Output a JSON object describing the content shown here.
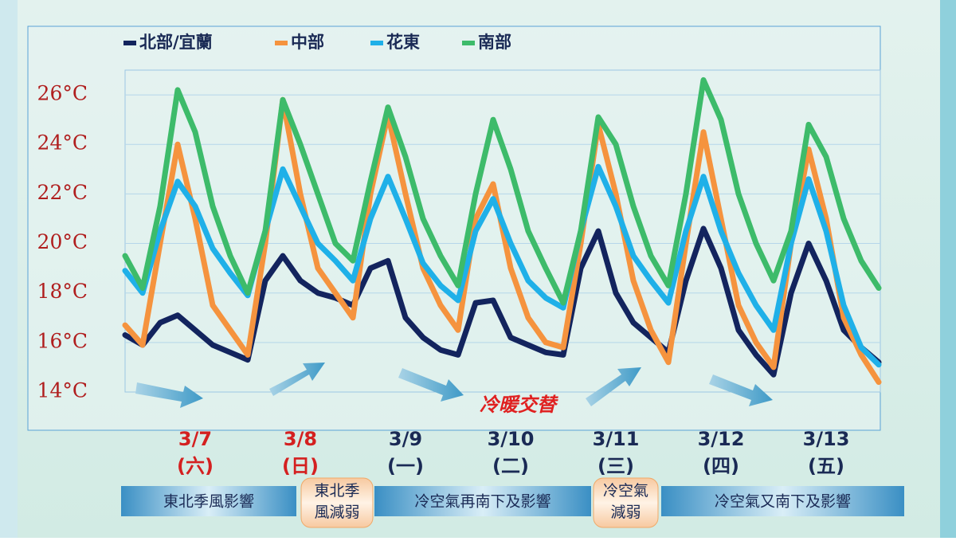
{
  "chart_data": {
    "type": "line",
    "categories": [
      null,
      null,
      null,
      null,
      "3/7",
      null,
      null,
      null,
      null,
      null,
      "3/8",
      null,
      null,
      null,
      null,
      null,
      "3/9",
      null,
      null,
      null,
      null,
      null,
      "3/10",
      null,
      null,
      null,
      null,
      null,
      "3/11",
      null,
      null,
      null,
      null,
      null,
      "3/12",
      null,
      null,
      null,
      null,
      null,
      "3/13",
      null,
      null,
      null
    ],
    "weekdays": [
      null,
      null,
      null,
      null,
      "(六)",
      null,
      null,
      null,
      null,
      null,
      "(日)",
      null,
      null,
      null,
      null,
      null,
      "(一)",
      null,
      null,
      null,
      null,
      null,
      "(二)",
      null,
      null,
      null,
      null,
      null,
      "(三)",
      null,
      null,
      null,
      null,
      null,
      "(四)",
      null,
      null,
      null,
      null,
      null,
      "(五)",
      null,
      null,
      null
    ],
    "category_colors": [
      null,
      null,
      null,
      null,
      "#d42020",
      null,
      null,
      null,
      null,
      null,
      "#d42020",
      null,
      null,
      null,
      null,
      null,
      "#1a2a55",
      null,
      null,
      null,
      null,
      null,
      "#1a2a55",
      null,
      null,
      null,
      null,
      null,
      "#1a2a55",
      null,
      null,
      null,
      null,
      null,
      "#1a2a55",
      null,
      null,
      null,
      null,
      null,
      "#1a2a55",
      null,
      null,
      null
    ],
    "series": [
      {
        "name": "北部/宜蘭",
        "color": "#13245e",
        "values": [
          16.3,
          15.9,
          16.8,
          17.1,
          16.5,
          15.9,
          15.6,
          15.3,
          18.5,
          19.5,
          18.5,
          18.0,
          17.8,
          17.5,
          19.0,
          19.3,
          17.0,
          16.2,
          15.7,
          15.5,
          17.6,
          17.7,
          16.2,
          15.9,
          15.6,
          15.5,
          19.0,
          20.5,
          18.0,
          16.8,
          16.2,
          15.6,
          18.5,
          20.6,
          19.0,
          16.5,
          15.5,
          14.7,
          18.0,
          20.0,
          18.5,
          16.5,
          15.8,
          15.2
        ]
      },
      {
        "name": "中部",
        "color": "#f5933e",
        "values": [
          16.7,
          15.9,
          20.0,
          24.0,
          21.0,
          17.5,
          16.5,
          15.5,
          20.0,
          25.8,
          22.0,
          19.0,
          18.0,
          17.0,
          22.0,
          25.2,
          22.0,
          19.0,
          17.5,
          16.5,
          21.0,
          22.4,
          19.0,
          17.0,
          16.0,
          15.8,
          20.0,
          24.8,
          22.0,
          18.5,
          16.5,
          15.2,
          20.0,
          24.5,
          21.0,
          17.5,
          16.0,
          15.0,
          20.0,
          23.8,
          21.0,
          17.0,
          15.5,
          14.4
        ]
      },
      {
        "name": "花東",
        "color": "#1fb0e8",
        "values": [
          18.9,
          18.0,
          20.5,
          22.5,
          21.5,
          19.8,
          18.8,
          17.9,
          20.5,
          23.0,
          21.5,
          20.0,
          19.3,
          18.5,
          21.0,
          22.7,
          21.0,
          19.2,
          18.3,
          17.7,
          20.5,
          21.8,
          20.0,
          18.5,
          17.8,
          17.4,
          20.5,
          23.1,
          21.5,
          19.5,
          18.5,
          17.6,
          20.5,
          22.7,
          20.5,
          18.8,
          17.5,
          16.5,
          20.0,
          22.6,
          20.5,
          17.5,
          15.8,
          15.1
        ]
      },
      {
        "name": "南部",
        "color": "#3dbb6a",
        "values": [
          19.5,
          18.2,
          21.5,
          26.2,
          24.5,
          21.5,
          19.5,
          18.0,
          20.5,
          25.8,
          24.0,
          22.0,
          20.0,
          19.3,
          22.5,
          25.5,
          23.5,
          21.0,
          19.5,
          18.3,
          22.0,
          25.0,
          23.0,
          20.5,
          19.0,
          17.6,
          20.5,
          25.1,
          24.0,
          21.5,
          19.5,
          18.3,
          22.0,
          26.6,
          25.0,
          22.0,
          20.0,
          18.5,
          20.5,
          24.8,
          23.5,
          21.0,
          19.3,
          18.2
        ]
      }
    ],
    "ylim": [
      14,
      27
    ],
    "yticks": [
      {
        "value": 14,
        "label": "14°C"
      },
      {
        "value": 16,
        "label": "16°C"
      },
      {
        "value": 18,
        "label": "18°C"
      },
      {
        "value": 20,
        "label": "20°C"
      },
      {
        "value": 22,
        "label": "22°C"
      },
      {
        "value": 24,
        "label": "24°C"
      },
      {
        "value": 26,
        "label": "26°C"
      }
    ],
    "grid": true,
    "annotation": "冷暖交替",
    "phases": [
      {
        "lines": [
          "東北季風影響"
        ],
        "style": "blue"
      },
      {
        "lines": [
          "東北季",
          "風減弱"
        ],
        "style": "orange"
      },
      {
        "lines": [
          "冷空氣再南下及影響"
        ],
        "style": "blue"
      },
      {
        "lines": [
          "冷空氣",
          "減弱"
        ],
        "style": "orange"
      },
      {
        "lines": [
          "冷空氣又南下及影響"
        ],
        "style": "blue"
      }
    ]
  }
}
